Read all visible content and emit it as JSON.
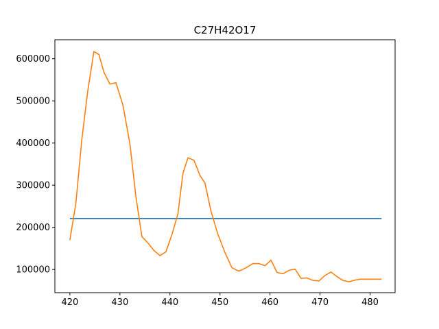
{
  "chart_data": {
    "type": "line",
    "title": "C27H42O17",
    "xlabel": "",
    "ylabel": "",
    "xlim": [
      417,
      485
    ],
    "ylim": [
      45000,
      645000
    ],
    "xticks": [
      420,
      430,
      440,
      450,
      460,
      470,
      480
    ],
    "yticks": [
      100000,
      200000,
      300000,
      400000,
      500000,
      600000
    ],
    "grid": false,
    "series": [
      {
        "color": "#1f77b4",
        "x": [
          420.0,
          482.3
        ],
        "y": [
          221000,
          221000
        ]
      },
      {
        "color": "#ff7f0e",
        "x": [
          420.0,
          421.2,
          422.4,
          423.6,
          424.8,
          425.8,
          426.8,
          428.0,
          429.2,
          430.6,
          432.0,
          433.2,
          434.4,
          435.6,
          436.8,
          438.0,
          439.2,
          440.4,
          441.6,
          442.6,
          443.6,
          444.8,
          446.0,
          447.0,
          448.2,
          449.6,
          451.0,
          452.4,
          453.8,
          455.2,
          456.6,
          457.8,
          459.0,
          460.2,
          461.4,
          462.6,
          463.8,
          465.0,
          466.2,
          467.4,
          468.6,
          469.8,
          471.0,
          472.2,
          473.4,
          474.6,
          475.8,
          477.0,
          478.2,
          479.6,
          481.0,
          482.3
        ],
        "y": [
          170000,
          257000,
          410000,
          525000,
          617000,
          610000,
          568000,
          540000,
          543000,
          490000,
          398000,
          272000,
          178000,
          163000,
          145000,
          133000,
          142000,
          183000,
          232000,
          328000,
          365000,
          359000,
          323000,
          305000,
          238000,
          183000,
          140000,
          104000,
          96000,
          104000,
          114000,
          114000,
          109000,
          122000,
          93000,
          90000,
          98000,
          101000,
          79000,
          80000,
          74000,
          73000,
          86000,
          94000,
          83000,
          74000,
          71000,
          75000,
          77000,
          77000,
          77000,
          77000
        ]
      }
    ]
  }
}
